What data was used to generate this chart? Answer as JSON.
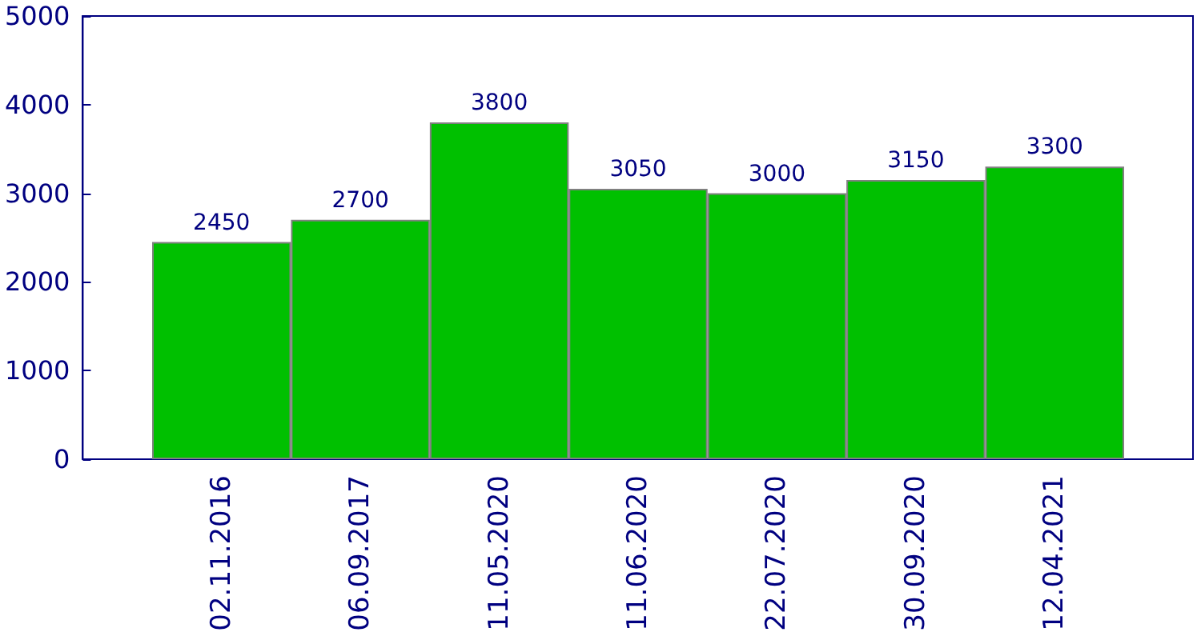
{
  "chart_data": {
    "type": "bar",
    "categories": [
      "02.11.2016",
      "06.09.2017",
      "11.05.2020",
      "11.06.2020",
      "22.07.2020",
      "30.09.2020",
      "12.04.2021"
    ],
    "values": [
      2450,
      2700,
      3800,
      3050,
      3000,
      3150,
      3300
    ],
    "color": "#00c000",
    "ylim": [
      0,
      5000
    ],
    "yticks": [
      0,
      1000,
      2000,
      3000,
      4000,
      5000
    ],
    "grid": false,
    "data_labels": true
  }
}
